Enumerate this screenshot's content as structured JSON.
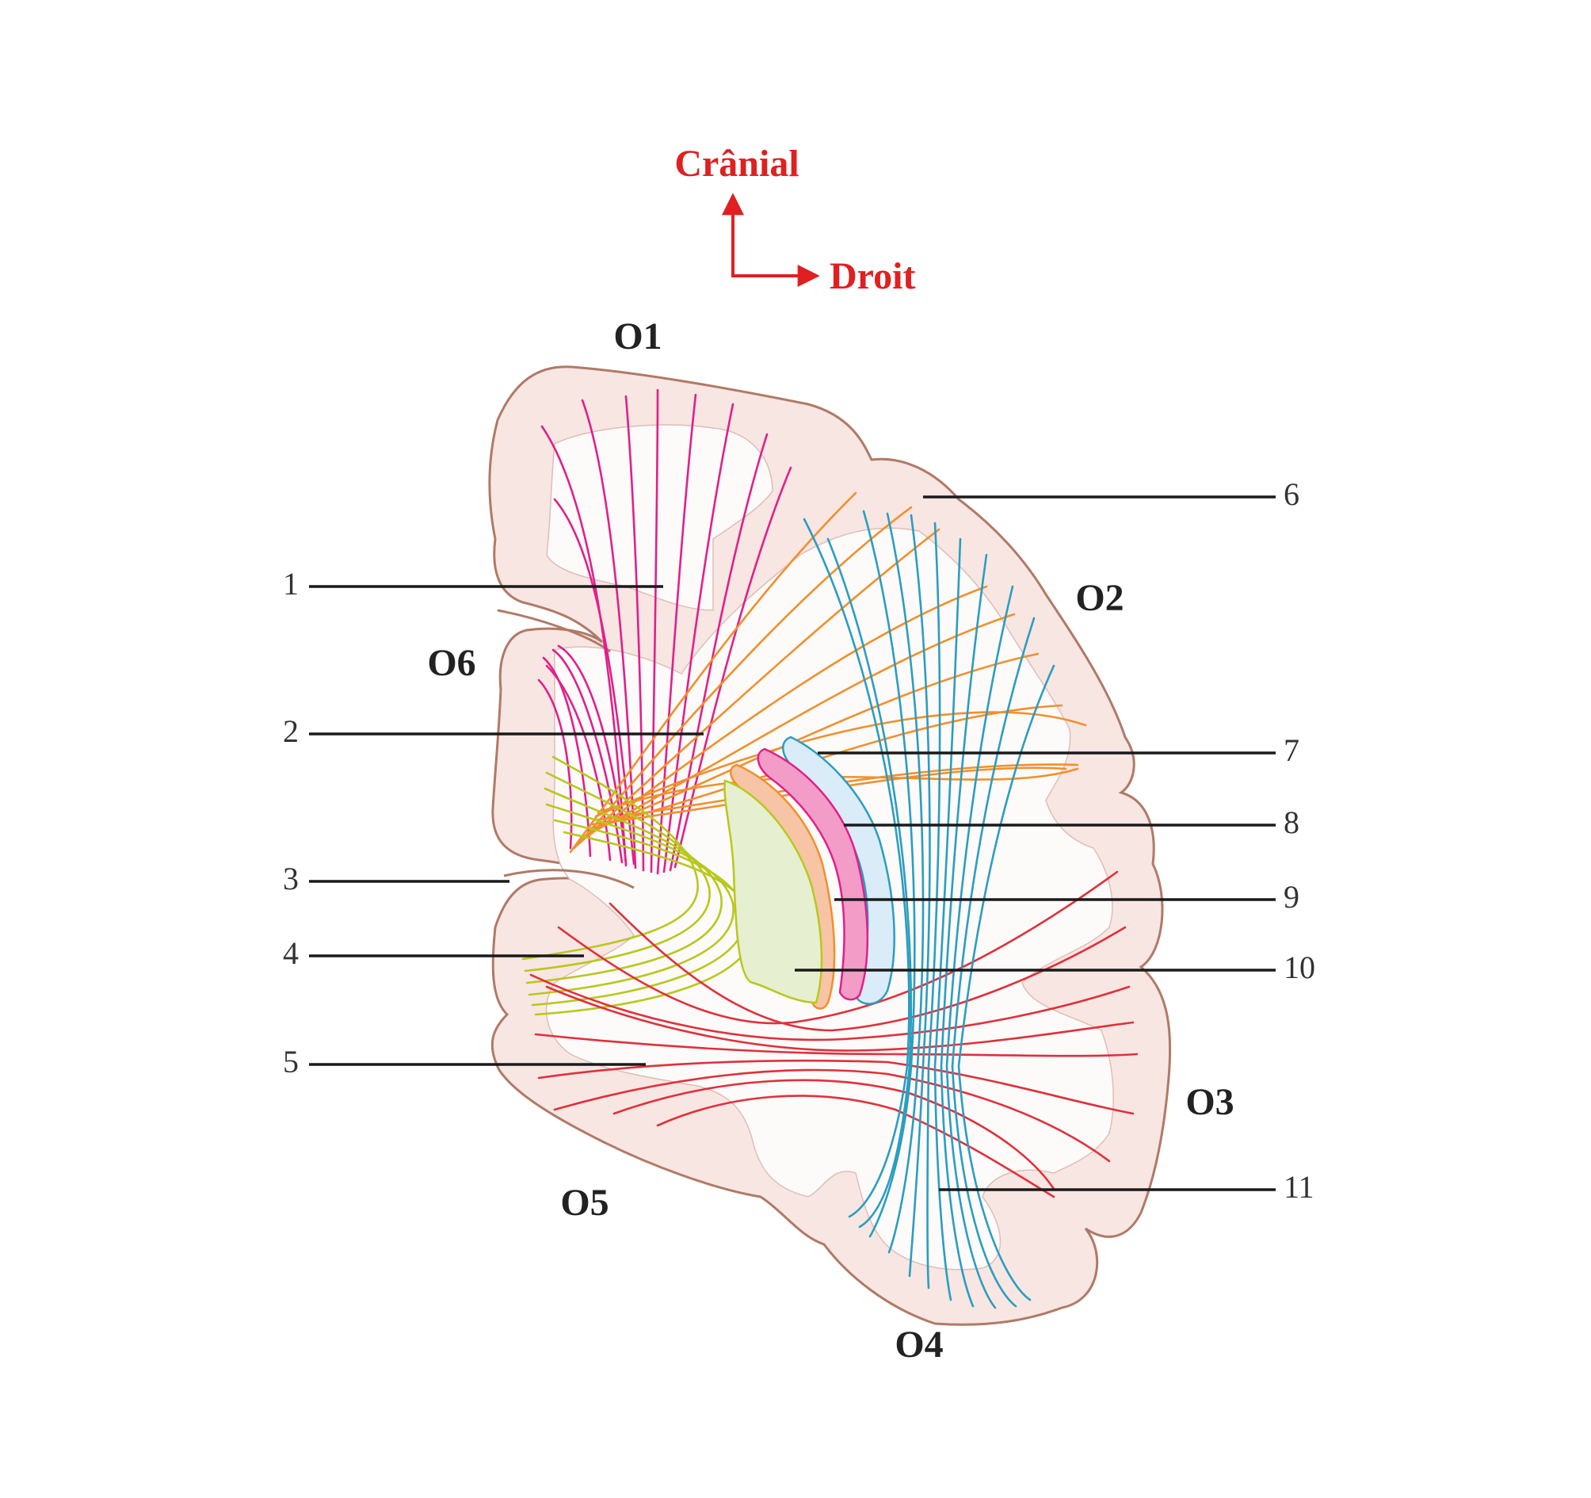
{
  "orientation": {
    "up_label": "Crânial",
    "right_label": "Droit",
    "arrow_color": "#e02020"
  },
  "regions": [
    "O1",
    "O2",
    "O3",
    "O4",
    "O5",
    "O6"
  ],
  "callouts": [
    "1",
    "2",
    "3",
    "4",
    "5",
    "6",
    "7",
    "8",
    "9",
    "10",
    "11"
  ],
  "colors": {
    "outline": "#b07a66",
    "tissue_fill": "#f8e6e3",
    "inner_fill": "#fdfafa",
    "fiber_magenta": "#e0208a",
    "fiber_orange": "#f0902c",
    "fiber_yellowgreen": "#b8c81c",
    "fiber_red": "#e0303a",
    "fiber_teal": "#2a9ec0",
    "nucleus_blue": "#d9ecf8",
    "nucleus_pink": "#f39cc8",
    "nucleus_peach": "#f8c4a6",
    "nucleus_green": "#e6efcf"
  }
}
